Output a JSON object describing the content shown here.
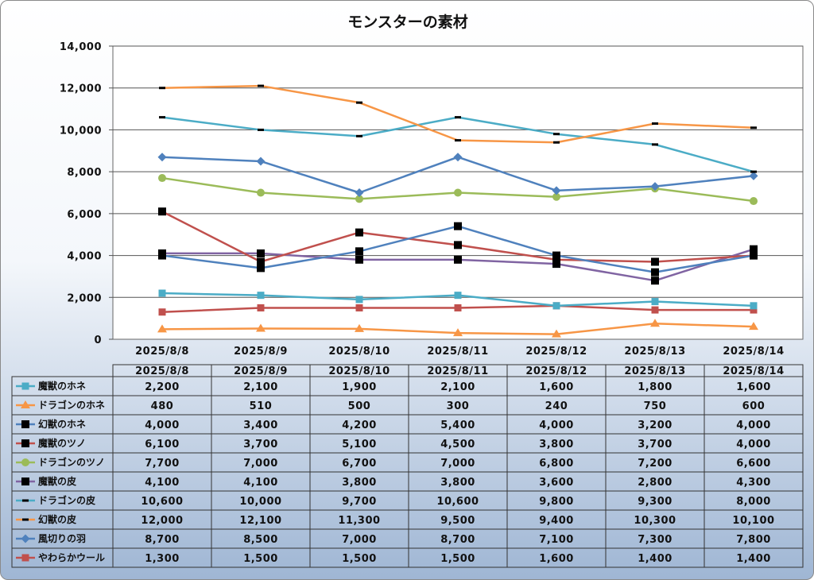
{
  "chart_data": {
    "type": "line",
    "title": "モンスターの素材",
    "x": [
      "2025/8/8",
      "2025/8/9",
      "2025/8/10",
      "2025/8/11",
      "2025/8/12",
      "2025/8/13",
      "2025/8/14"
    ],
    "ylim": [
      0,
      14000
    ],
    "yticks": [
      "0",
      "2,000",
      "4,000",
      "6,000",
      "8,000",
      "10,000",
      "12,000",
      "14,000"
    ],
    "grid": true,
    "legend": "data-table",
    "series": [
      {
        "name": "魔獣のホネ",
        "color": "#4bacc6",
        "marker": "square",
        "values": [
          2200,
          2100,
          1900,
          2100,
          1600,
          1800,
          1600
        ],
        "labels": [
          "2,200",
          "2,100",
          "1,900",
          "2,100",
          "1,600",
          "1,800",
          "1,600"
        ]
      },
      {
        "name": "ドラゴンのホネ",
        "color": "#f79646",
        "marker": "triangle",
        "values": [
          480,
          510,
          500,
          300,
          240,
          750,
          600
        ],
        "labels": [
          "480",
          "510",
          "500",
          "300",
          "240",
          "750",
          "600"
        ]
      },
      {
        "name": "幻獣のホネ",
        "color": "#4f81bd",
        "marker": "black-square",
        "values": [
          4000,
          3400,
          4200,
          5400,
          4000,
          3200,
          4000
        ],
        "labels": [
          "4,000",
          "3,400",
          "4,200",
          "5,400",
          "4,000",
          "3,200",
          "4,000"
        ]
      },
      {
        "name": "魔獣のツノ",
        "color": "#c0504d",
        "marker": "black-square",
        "values": [
          6100,
          3700,
          5100,
          4500,
          3800,
          3700,
          4000
        ],
        "labels": [
          "6,100",
          "3,700",
          "5,100",
          "4,500",
          "3,800",
          "3,700",
          "4,000"
        ]
      },
      {
        "name": "ドラゴンのツノ",
        "color": "#9bbb59",
        "marker": "circle",
        "values": [
          7700,
          7000,
          6700,
          7000,
          6800,
          7200,
          6600
        ],
        "labels": [
          "7,700",
          "7,000",
          "6,700",
          "7,000",
          "6,800",
          "7,200",
          "6,600"
        ]
      },
      {
        "name": "魔獣の皮",
        "color": "#8064a2",
        "marker": "black-square",
        "values": [
          4100,
          4100,
          3800,
          3800,
          3600,
          2800,
          4300
        ],
        "labels": [
          "4,100",
          "4,100",
          "3,800",
          "3,800",
          "3,600",
          "2,800",
          "4,300"
        ]
      },
      {
        "name": "ドラゴンの皮",
        "color": "#4bacc6",
        "marker": "dash",
        "values": [
          10600,
          10000,
          9700,
          10600,
          9800,
          9300,
          8000
        ],
        "labels": [
          "10,600",
          "10,000",
          "9,700",
          "10,600",
          "9,800",
          "9,300",
          "8,000"
        ]
      },
      {
        "name": "幻獣の皮",
        "color": "#f79646",
        "marker": "dash",
        "values": [
          12000,
          12100,
          11300,
          9500,
          9400,
          10300,
          10100
        ],
        "labels": [
          "12,000",
          "12,100",
          "11,300",
          "9,500",
          "9,400",
          "10,300",
          "10,100"
        ]
      },
      {
        "name": "風切りの羽",
        "color": "#4f81bd",
        "marker": "diamond",
        "values": [
          8700,
          8500,
          7000,
          8700,
          7100,
          7300,
          7800
        ],
        "labels": [
          "8,700",
          "8,500",
          "7,000",
          "8,700",
          "7,100",
          "7,300",
          "7,800"
        ]
      },
      {
        "name": "やわらかウール",
        "color": "#c0504d",
        "marker": "square",
        "values": [
          1300,
          1500,
          1500,
          1500,
          1600,
          1400,
          1400
        ],
        "labels": [
          "1,300",
          "1,500",
          "1,500",
          "1,500",
          "1,600",
          "1,400",
          "1,400"
        ]
      }
    ]
  }
}
